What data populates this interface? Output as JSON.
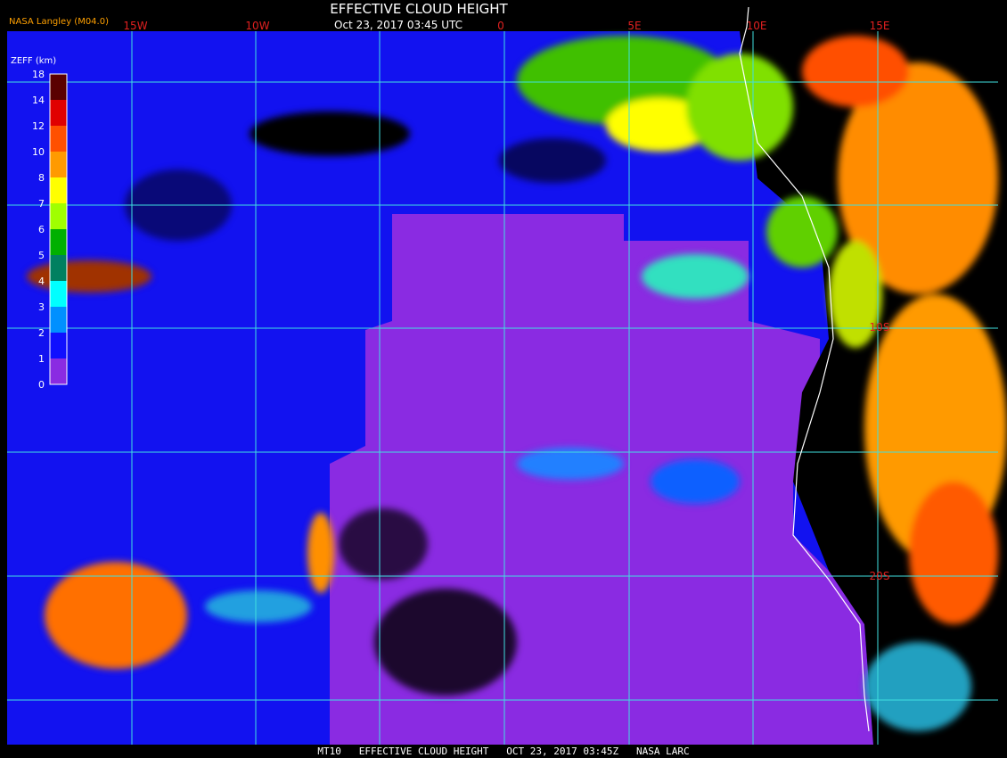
{
  "header": {
    "title": "EFFECTIVE CLOUD HEIGHT",
    "subtitle": "Oct 23, 2017 03:45 UTC",
    "source": "NASA Langley (M04.0)"
  },
  "colorbar": {
    "title": "ZEFF (km)",
    "labels": [
      "18",
      "14",
      "12",
      "10",
      "8",
      "7",
      "6",
      "5",
      "4",
      "3",
      "2",
      "1",
      "0"
    ],
    "colors": [
      "#5a0000",
      "#e00000",
      "#ff5000",
      "#ff9a00",
      "#ffff00",
      "#a0ff00",
      "#00b000",
      "#008060",
      "#00ffff",
      "#0090ff",
      "#1010ff",
      "#8a2be2"
    ]
  },
  "map": {
    "longitude_labels": [
      "15W",
      "10W",
      "0",
      "5E",
      "10E",
      "15E"
    ],
    "latitude_labels": [
      "10S",
      "20S"
    ]
  },
  "footer": {
    "text": "MT10   EFFECTIVE CLOUD HEIGHT   OCT 23, 2017 03:45Z   NASA LARC"
  }
}
